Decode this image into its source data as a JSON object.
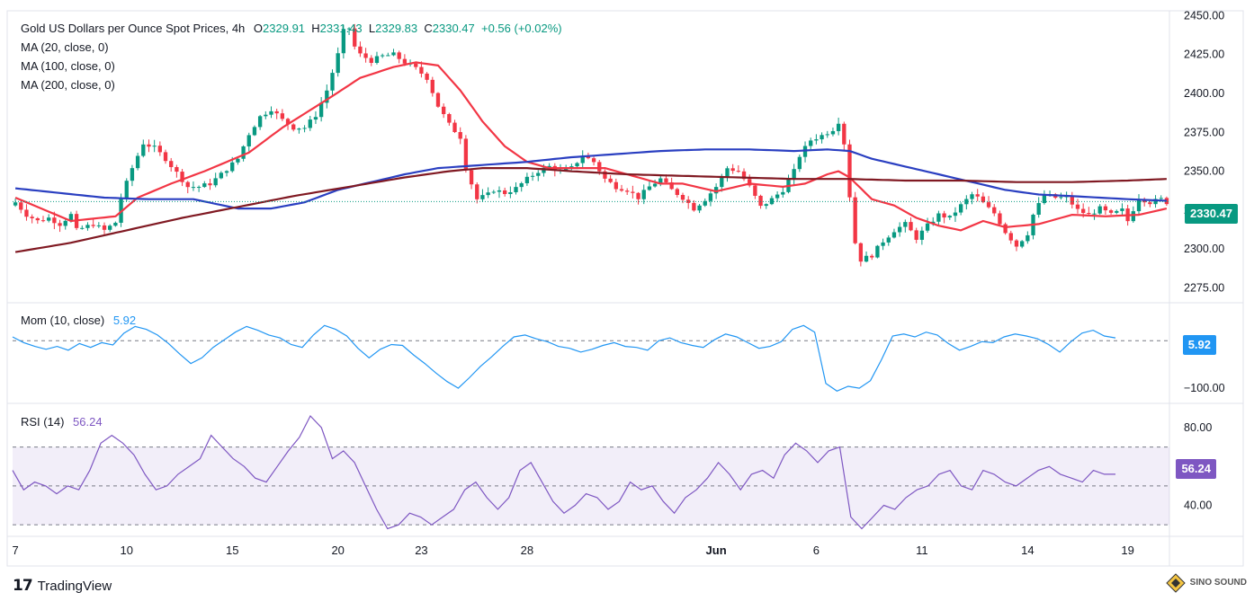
{
  "header": {
    "title": "Gold US Dollars per Ounce Spot Prices, 4h",
    "open_label": "O",
    "open": "2329.91",
    "high_label": "H",
    "high": "2331.43",
    "low_label": "L",
    "low": "2329.83",
    "close_label": "C",
    "close": "2330.47",
    "change": "+0.56 (+0.02%)"
  },
  "indicators": {
    "ma20": "MA (20, close, 0)",
    "ma100": "MA (100, close, 0)",
    "ma200": "MA (200, close, 0)",
    "mom_label": "Mom (10, close)",
    "mom_value": "5.92",
    "rsi_label": "RSI (14)",
    "rsi_value": "56.24"
  },
  "price_tag": "2330.47",
  "mom_tag": "5.92",
  "rsi_tag": "56.24",
  "footer": {
    "brand": "TradingView",
    "watermark": "SINO SOUND"
  },
  "colors": {
    "up": "#089981",
    "down": "#f23645",
    "ma20": "#f23645",
    "ma100": "#2a3fc1",
    "ma200": "#801922",
    "mom": "#2196f3",
    "rsi": "#7e57c2"
  },
  "chart_data": [
    {
      "type": "candlestick",
      "title": "Gold US Dollars per Ounce Spot Prices, 4h",
      "x_tick_labels": [
        "7",
        "10",
        "15",
        "20",
        "23",
        "28",
        "Jun",
        "6",
        "11",
        "14",
        "19"
      ],
      "y_tick_labels": [
        "2450.00",
        "2425.00",
        "2400.00",
        "2375.00",
        "2350.00",
        "2325.00",
        "2300.00",
        "2275.00"
      ],
      "ylim": [
        2266,
        2452
      ],
      "last_close": 2330.47,
      "close_path": [
        [
          0,
          2330
        ],
        [
          2,
          2322
        ],
        [
          4,
          2318
        ],
        [
          6,
          2320
        ],
        [
          8,
          2316
        ],
        [
          10,
          2322
        ],
        [
          11,
          2312
        ],
        [
          14,
          2316
        ],
        [
          16,
          2312
        ],
        [
          18,
          2317
        ],
        [
          19,
          2333
        ],
        [
          21,
          2352
        ],
        [
          23,
          2368
        ],
        [
          25,
          2365
        ],
        [
          27,
          2358
        ],
        [
          29,
          2349
        ],
        [
          31,
          2340
        ],
        [
          33,
          2340
        ],
        [
          35,
          2342
        ],
        [
          37,
          2348
        ],
        [
          40,
          2358
        ],
        [
          42,
          2374
        ],
        [
          44,
          2385
        ],
        [
          46,
          2390
        ],
        [
          48,
          2383
        ],
        [
          50,
          2378
        ],
        [
          52,
          2378
        ],
        [
          54,
          2386
        ],
        [
          56,
          2402
        ],
        [
          58,
          2425
        ],
        [
          59,
          2440
        ],
        [
          60,
          2442
        ],
        [
          61,
          2430
        ],
        [
          62,
          2425
        ],
        [
          64,
          2421
        ],
        [
          66,
          2424
        ],
        [
          68,
          2425
        ],
        [
          70,
          2420
        ],
        [
          72,
          2416
        ],
        [
          74,
          2410
        ],
        [
          76,
          2392
        ],
        [
          78,
          2380
        ],
        [
          80,
          2372
        ],
        [
          81,
          2352
        ],
        [
          82,
          2342
        ],
        [
          83,
          2332
        ],
        [
          85,
          2335
        ],
        [
          86,
          2338
        ],
        [
          88,
          2336
        ],
        [
          90,
          2339
        ],
        [
          92,
          2345
        ],
        [
          94,
          2350
        ],
        [
          96,
          2353
        ],
        [
          98,
          2350
        ],
        [
          100,
          2352
        ],
        [
          102,
          2360
        ],
        [
          104,
          2356
        ],
        [
          106,
          2345
        ],
        [
          108,
          2340
        ],
        [
          110,
          2338
        ],
        [
          112,
          2333
        ],
        [
          114,
          2340
        ],
        [
          116,
          2345
        ],
        [
          118,
          2338
        ],
        [
          120,
          2333
        ],
        [
          122,
          2326
        ],
        [
          124,
          2332
        ],
        [
          126,
          2340
        ],
        [
          128,
          2352
        ],
        [
          130,
          2350
        ],
        [
          132,
          2340
        ],
        [
          134,
          2327
        ],
        [
          136,
          2332
        ],
        [
          138,
          2338
        ],
        [
          140,
          2350
        ],
        [
          141,
          2360
        ],
        [
          143,
          2370
        ],
        [
          145,
          2373
        ],
        [
          147,
          2377
        ],
        [
          148,
          2382
        ],
        [
          149,
          2368
        ],
        [
          150,
          2334
        ],
        [
          151,
          2304
        ],
        [
          152,
          2293
        ],
        [
          154,
          2296
        ],
        [
          156,
          2305
        ],
        [
          158,
          2312
        ],
        [
          160,
          2316
        ],
        [
          162,
          2307
        ],
        [
          164,
          2315
        ],
        [
          166,
          2322
        ],
        [
          168,
          2320
        ],
        [
          170,
          2328
        ],
        [
          172,
          2335
        ],
        [
          173,
          2333
        ],
        [
          175,
          2326
        ],
        [
          176,
          2323
        ],
        [
          178,
          2311
        ],
        [
          180,
          2302
        ],
        [
          182,
          2310
        ],
        [
          183,
          2322
        ],
        [
          185,
          2335
        ],
        [
          187,
          2333
        ],
        [
          189,
          2333
        ],
        [
          191,
          2325
        ],
        [
          193,
          2322
        ],
        [
          195,
          2326
        ],
        [
          197,
          2322
        ],
        [
          199,
          2325
        ],
        [
          200,
          2318
        ],
        [
          202,
          2333
        ],
        [
          204,
          2330
        ],
        [
          206,
          2332
        ],
        [
          207,
          2330
        ]
      ],
      "series": [
        {
          "name": "MA (20, close, 0)",
          "path": [
            [
              0,
              2333
            ],
            [
              10,
              2318
            ],
            [
              18,
              2321
            ],
            [
              22,
              2333
            ],
            [
              28,
              2342
            ],
            [
              34,
              2350
            ],
            [
              42,
              2362
            ],
            [
              48,
              2378
            ],
            [
              56,
              2396
            ],
            [
              62,
              2410
            ],
            [
              68,
              2417
            ],
            [
              72,
              2420
            ],
            [
              76,
              2418
            ],
            [
              80,
              2402
            ],
            [
              84,
              2382
            ],
            [
              88,
              2366
            ],
            [
              92,
              2356
            ],
            [
              96,
              2352
            ],
            [
              100,
              2352
            ],
            [
              106,
              2352
            ],
            [
              110,
              2348
            ],
            [
              116,
              2342
            ],
            [
              120,
              2342
            ],
            [
              126,
              2337
            ],
            [
              132,
              2342
            ],
            [
              138,
              2340
            ],
            [
              142,
              2342
            ],
            [
              146,
              2348
            ],
            [
              148,
              2350
            ],
            [
              150,
              2346
            ],
            [
              154,
              2332
            ],
            [
              158,
              2328
            ],
            [
              162,
              2320
            ],
            [
              166,
              2315
            ],
            [
              170,
              2312
            ],
            [
              174,
              2318
            ],
            [
              178,
              2314
            ],
            [
              184,
              2316
            ],
            [
              190,
              2322
            ],
            [
              196,
              2321
            ],
            [
              202,
              2322
            ],
            [
              207,
              2326
            ]
          ]
        },
        {
          "name": "MA (100, close, 0)",
          "path": [
            [
              0,
              2339
            ],
            [
              8,
              2336
            ],
            [
              16,
              2333
            ],
            [
              24,
              2332
            ],
            [
              32,
              2332
            ],
            [
              40,
              2326
            ],
            [
              46,
              2326
            ],
            [
              52,
              2330
            ],
            [
              58,
              2338
            ],
            [
              64,
              2343
            ],
            [
              70,
              2348
            ],
            [
              76,
              2352
            ],
            [
              84,
              2354
            ],
            [
              92,
              2356
            ],
            [
              100,
              2359
            ],
            [
              108,
              2361
            ],
            [
              116,
              2363
            ],
            [
              124,
              2364
            ],
            [
              132,
              2364
            ],
            [
              140,
              2363
            ],
            [
              146,
              2364
            ],
            [
              150,
              2363
            ],
            [
              154,
              2358
            ],
            [
              160,
              2353
            ],
            [
              166,
              2348
            ],
            [
              172,
              2343
            ],
            [
              178,
              2338
            ],
            [
              184,
              2335
            ],
            [
              190,
              2334
            ],
            [
              200,
              2332
            ],
            [
              207,
              2331
            ]
          ]
        },
        {
          "name": "MA (200, close, 0)",
          "path": [
            [
              0,
              2298
            ],
            [
              10,
              2304
            ],
            [
              20,
              2312
            ],
            [
              30,
              2320
            ],
            [
              40,
              2327
            ],
            [
              50,
              2334
            ],
            [
              60,
              2340
            ],
            [
              70,
              2346
            ],
            [
              78,
              2350
            ],
            [
              84,
              2352
            ],
            [
              92,
              2352
            ],
            [
              100,
              2350
            ],
            [
              110,
              2348
            ],
            [
              120,
              2347
            ],
            [
              130,
              2346
            ],
            [
              140,
              2345
            ],
            [
              150,
              2345
            ],
            [
              160,
              2344
            ],
            [
              170,
              2344
            ],
            [
              180,
              2343
            ],
            [
              190,
              2343
            ],
            [
              200,
              2344
            ],
            [
              207,
              2345
            ]
          ]
        }
      ]
    },
    {
      "type": "line",
      "title": "Mom (10, close)",
      "y_tick_labels": [
        "−100.00"
      ],
      "ylim": [
        -130,
        78
      ],
      "last_value": 5.92,
      "series": [
        {
          "name": "Mom (10, close)",
          "values": [
            8,
            -4,
            -12,
            -18,
            -12,
            -20,
            -6,
            -14,
            -4,
            -9,
            16,
            30,
            24,
            12,
            -6,
            -28,
            -48,
            -36,
            -14,
            2,
            18,
            30,
            22,
            12,
            6,
            -8,
            -14,
            12,
            32,
            24,
            10,
            -16,
            -36,
            -18,
            -8,
            -10,
            -30,
            -48,
            -68,
            -86,
            -100,
            -78,
            -54,
            -34,
            -12,
            8,
            12,
            4,
            -2,
            -12,
            -16,
            -24,
            -18,
            -10,
            -4,
            -12,
            -14,
            -20,
            0,
            6,
            -4,
            -10,
            -14,
            2,
            14,
            8,
            -4,
            -16,
            -12,
            -2,
            24,
            32,
            18,
            -90,
            -106,
            -96,
            -100,
            -84,
            -40,
            10,
            14,
            8,
            18,
            12,
            -6,
            -20,
            -12,
            -2,
            -4,
            8,
            14,
            10,
            4,
            -8,
            -24,
            -2,
            16,
            22,
            10,
            6
          ]
        }
      ]
    },
    {
      "type": "line",
      "title": "RSI (14)",
      "y_tick_labels": [
        "80.00",
        "60.00",
        "40.00"
      ],
      "ylim": [
        25,
        92
      ],
      "bands": [
        30,
        50,
        70
      ],
      "last_value": 56.24,
      "series": [
        {
          "name": "RSI (14)",
          "values": [
            58,
            48,
            52,
            50,
            46,
            50,
            48,
            58,
            72,
            76,
            72,
            66,
            56,
            48,
            50,
            56,
            60,
            64,
            76,
            70,
            64,
            60,
            54,
            52,
            60,
            68,
            75,
            86,
            80,
            64,
            68,
            62,
            50,
            38,
            28,
            30,
            36,
            34,
            30,
            34,
            38,
            48,
            52,
            44,
            38,
            44,
            58,
            62,
            52,
            42,
            36,
            40,
            46,
            44,
            38,
            42,
            52,
            48,
            50,
            42,
            36,
            44,
            48,
            54,
            62,
            56,
            48,
            56,
            58,
            54,
            66,
            72,
            68,
            62,
            68,
            70,
            34,
            28,
            34,
            40,
            38,
            44,
            48,
            50,
            56,
            58,
            50,
            48,
            58,
            56,
            52,
            50,
            54,
            58,
            60,
            56,
            54,
            52,
            58,
            56,
            56
          ]
        }
      ]
    }
  ]
}
